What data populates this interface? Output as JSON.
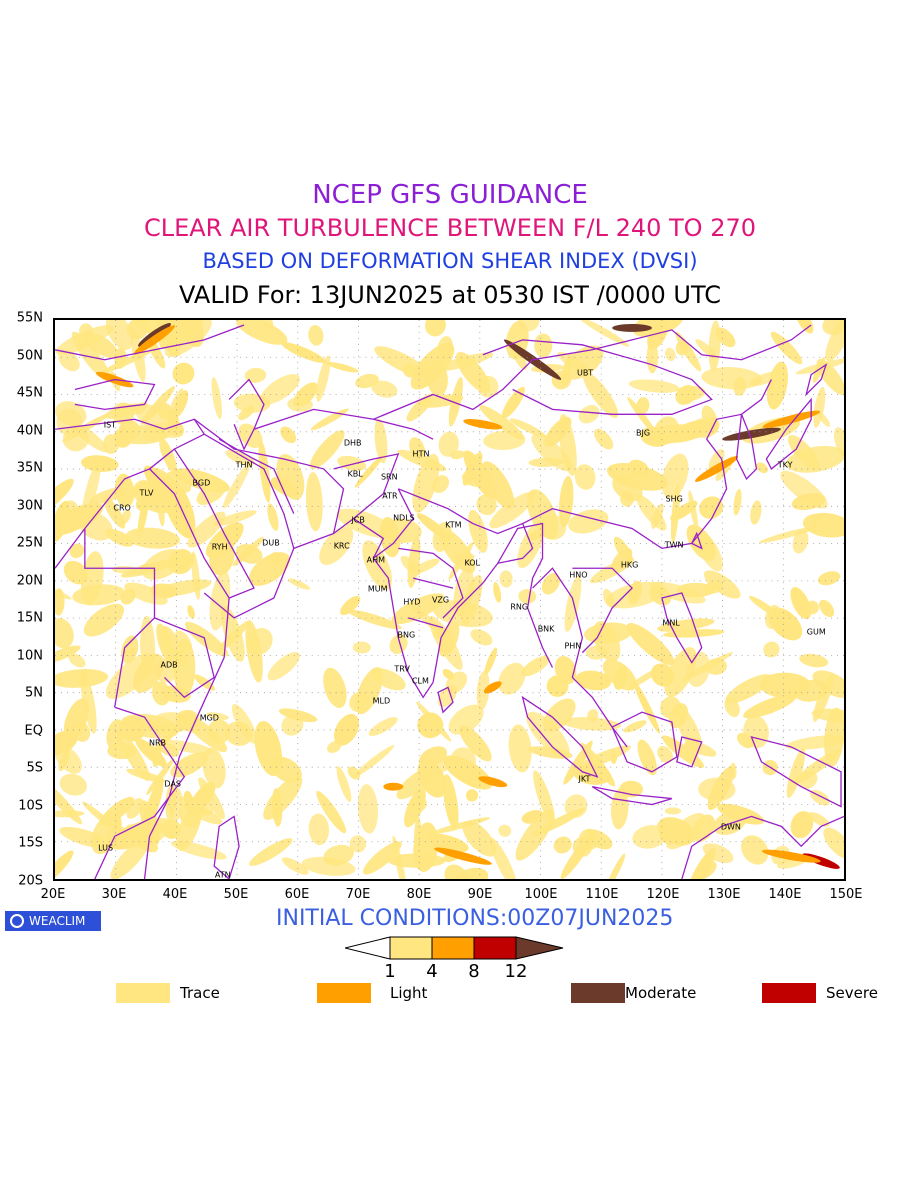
{
  "header": {
    "line1": "NCEP GFS GUIDANCE",
    "line2": "CLEAR AIR TURBULENCE BETWEEN F/L 240 TO 270",
    "line3": "BASED ON DEFORMATION SHEAR INDEX (DVSI)",
    "line4": "VALID For: 13JUN2025 at 0530 IST /0000 UTC"
  },
  "map": {
    "lat_labels": [
      "55N",
      "50N",
      "45N",
      "40N",
      "35N",
      "30N",
      "25N",
      "20N",
      "15N",
      "10N",
      "5N",
      "EQ",
      "5S",
      "10S",
      "15S",
      "20S"
    ],
    "lon_labels": [
      "20E",
      "30E",
      "40E",
      "50E",
      "60E",
      "70E",
      "80E",
      "90E",
      "100E",
      "110E",
      "120E",
      "130E",
      "140E",
      "150E"
    ],
    "extent": {
      "lon_min": 20,
      "lon_max": 150,
      "lat_min": -20,
      "lat_max": 55
    },
    "stations": [
      {
        "code": "IST",
        "lon": 29,
        "lat": 41
      },
      {
        "code": "TLV",
        "lon": 35,
        "lat": 32
      },
      {
        "code": "CRO",
        "lon": 31,
        "lat": 30
      },
      {
        "code": "BGD",
        "lon": 44,
        "lat": 33.3
      },
      {
        "code": "THN",
        "lon": 51,
        "lat": 35.7
      },
      {
        "code": "RYH",
        "lon": 47,
        "lat": 24.7
      },
      {
        "code": "DUB",
        "lon": 55.4,
        "lat": 25.3
      },
      {
        "code": "DHB",
        "lon": 68.8,
        "lat": 38.6
      },
      {
        "code": "KBL",
        "lon": 69.2,
        "lat": 34.5
      },
      {
        "code": "SRN",
        "lon": 74.8,
        "lat": 34.1
      },
      {
        "code": "HTN",
        "lon": 80,
        "lat": 37.1
      },
      {
        "code": "ATR",
        "lon": 74.9,
        "lat": 31.6
      },
      {
        "code": "JCB",
        "lon": 69.7,
        "lat": 28.3
      },
      {
        "code": "NDLS",
        "lon": 77.2,
        "lat": 28.6
      },
      {
        "code": "KTM",
        "lon": 85.3,
        "lat": 27.7
      },
      {
        "code": "KRC",
        "lon": 67,
        "lat": 24.9
      },
      {
        "code": "AHM",
        "lon": 72.6,
        "lat": 23
      },
      {
        "code": "KOL",
        "lon": 88.4,
        "lat": 22.6
      },
      {
        "code": "MUM",
        "lon": 72.9,
        "lat": 19.1
      },
      {
        "code": "HYD",
        "lon": 78.5,
        "lat": 17.4
      },
      {
        "code": "VZG",
        "lon": 83.2,
        "lat": 17.7
      },
      {
        "code": "RNG",
        "lon": 96.1,
        "lat": 16.8
      },
      {
        "code": "BNG",
        "lon": 77.6,
        "lat": 13
      },
      {
        "code": "TRV",
        "lon": 76.9,
        "lat": 8.5
      },
      {
        "code": "CLM",
        "lon": 79.9,
        "lat": 6.9
      },
      {
        "code": "MLD",
        "lon": 73.5,
        "lat": 4.2
      },
      {
        "code": "BNK",
        "lon": 100.5,
        "lat": 13.8
      },
      {
        "code": "PHN",
        "lon": 104.9,
        "lat": 11.6
      },
      {
        "code": "HNO",
        "lon": 105.8,
        "lat": 21
      },
      {
        "code": "HKG",
        "lon": 114.2,
        "lat": 22.3
      },
      {
        "code": "TWN",
        "lon": 121.5,
        "lat": 25
      },
      {
        "code": "SHG",
        "lon": 121.5,
        "lat": 31.2
      },
      {
        "code": "BJG",
        "lon": 116.4,
        "lat": 39.9
      },
      {
        "code": "UBT",
        "lon": 106.9,
        "lat": 47.9
      },
      {
        "code": "TKY",
        "lon": 139.7,
        "lat": 35.7
      },
      {
        "code": "MNL",
        "lon": 121,
        "lat": 14.6
      },
      {
        "code": "GUM",
        "lon": 144.8,
        "lat": 13.5
      },
      {
        "code": "ADB",
        "lon": 38.7,
        "lat": 9
      },
      {
        "code": "MGD",
        "lon": 45.3,
        "lat": 2
      },
      {
        "code": "NRB",
        "lon": 36.8,
        "lat": -1.3
      },
      {
        "code": "DAS",
        "lon": 39.3,
        "lat": -6.8
      },
      {
        "code": "LUS",
        "lon": 28.3,
        "lat": -15.4
      },
      {
        "code": "ATN",
        "lon": 47.5,
        "lat": -18.9
      },
      {
        "code": "JKT",
        "lon": 106.8,
        "lat": -6.2
      },
      {
        "code": "DWN",
        "lon": 130.8,
        "lat": -12.5
      }
    ]
  },
  "logo": {
    "label": "WEACLIM"
  },
  "footer": {
    "initial": "INITIAL CONDITIONS:00Z07JUN2025"
  },
  "colorbar": {
    "ticks": [
      "1",
      "4",
      "8",
      "12"
    ],
    "colors": [
      "#ffe680",
      "#ffa000",
      "#c00000",
      "#6b3a2a"
    ]
  },
  "legend": [
    {
      "label": "Trace",
      "color": "#ffe680"
    },
    {
      "label": "Light",
      "color": "#ffa000"
    },
    {
      "label": "Moderate",
      "color": "#6b3a2a"
    },
    {
      "label": "Severe",
      "color": "#c00000"
    }
  ],
  "colors": {
    "border": "#9a20c8",
    "trace": "#ffe680",
    "light": "#ffa000",
    "severe": "#c00000",
    "moderate": "#6b3a2a"
  }
}
